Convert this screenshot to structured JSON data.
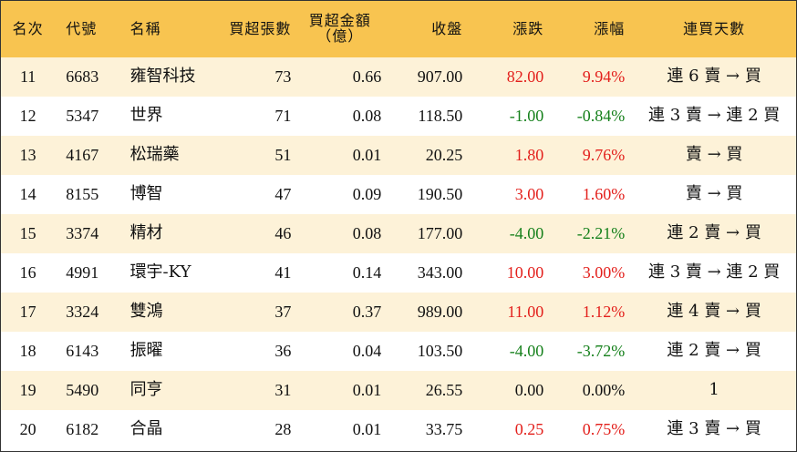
{
  "table": {
    "header": [
      "名次",
      "代號",
      "名稱",
      "買超張數",
      "買超金額\n（億）",
      "收盤",
      "漲跌",
      "漲幅",
      "連買天數"
    ],
    "rows": [
      [
        "11",
        "6683",
        "雍智科技",
        "73",
        "0.66",
        "907.00",
        "82.00",
        "9.94%",
        "連 6 賣 → 買"
      ],
      [
        "12",
        "5347",
        "世界",
        "71",
        "0.08",
        "118.50",
        "-1.00",
        "-0.84%",
        "連 3 賣 → 連 2 買"
      ],
      [
        "13",
        "4167",
        "松瑞藥",
        "51",
        "0.01",
        "20.25",
        "1.80",
        "9.76%",
        "賣 → 買"
      ],
      [
        "14",
        "8155",
        "博智",
        "47",
        "0.09",
        "190.50",
        "3.00",
        "1.60%",
        "賣 → 買"
      ],
      [
        "15",
        "3374",
        "精材",
        "46",
        "0.08",
        "177.00",
        "-4.00",
        "-2.21%",
        "連 2 賣 → 買"
      ],
      [
        "16",
        "4991",
        "環宇-KY",
        "41",
        "0.14",
        "343.00",
        "10.00",
        "3.00%",
        "連 3 賣 → 連 2 買"
      ],
      [
        "17",
        "3324",
        "雙鴻",
        "37",
        "0.37",
        "989.00",
        "11.00",
        "1.12%",
        "連 4 賣 → 買"
      ],
      [
        "18",
        "6143",
        "振曜",
        "36",
        "0.04",
        "103.50",
        "-4.00",
        "-3.72%",
        "連 2 賣 → 買"
      ],
      [
        "19",
        "5490",
        "同亨",
        "31",
        "0.01",
        "26.55",
        "0.00",
        "0.00%",
        "1"
      ],
      [
        "20",
        "6182",
        "合晶",
        "28",
        "0.01",
        "33.75",
        "0.25",
        "0.75%",
        "連 3 賣 → 買"
      ]
    ],
    "colors": {
      "up": "#e3201c",
      "down": "#15801b",
      "header": "#f8c450",
      "stripe": "#fdf2d8"
    }
  }
}
